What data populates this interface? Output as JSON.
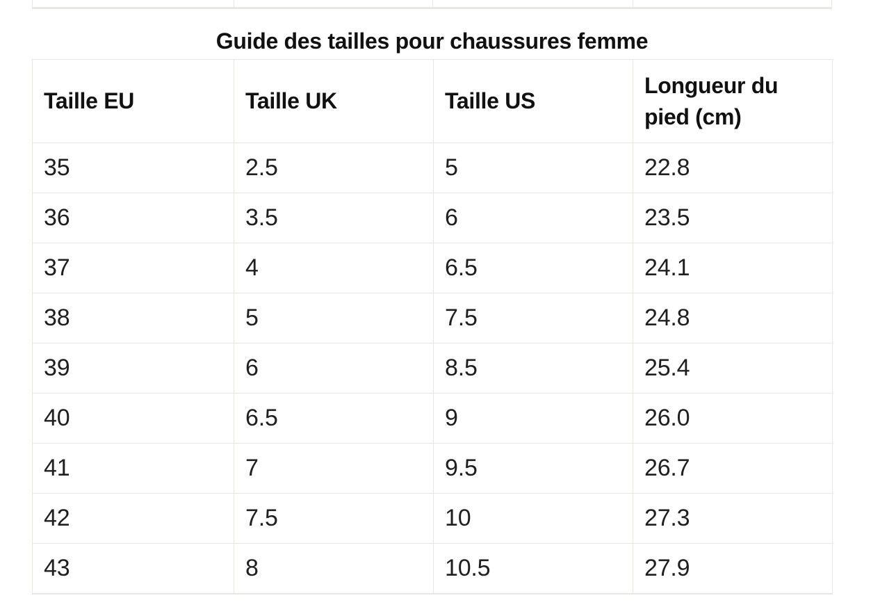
{
  "page": {
    "background_color": "#ffffff",
    "border_color": "#e8e7e1",
    "text_color": "#1a1a1a"
  },
  "partial_table_top": {
    "description": "bottom edge of previous table, 4 empty column slivers",
    "column_count": 4
  },
  "size_guide": {
    "title": "Guide des tailles pour chaussures femme",
    "columns": [
      "Taille EU",
      "Taille UK",
      "Taille US",
      "Longueur du pied (cm)"
    ],
    "rows": [
      [
        "35",
        "2.5",
        "5",
        "22.8"
      ],
      [
        "36",
        "3.5",
        "6",
        "23.5"
      ],
      [
        "37",
        "4",
        "6.5",
        "24.1"
      ],
      [
        "38",
        "5",
        "7.5",
        "24.8"
      ],
      [
        "39",
        "6",
        "8.5",
        "25.4"
      ],
      [
        "40",
        "6.5",
        "9",
        "26.0"
      ],
      [
        "41",
        "7",
        "9.5",
        "26.7"
      ],
      [
        "42",
        "7.5",
        "10",
        "27.3"
      ],
      [
        "43",
        "8",
        "10.5",
        "27.9"
      ]
    ]
  }
}
